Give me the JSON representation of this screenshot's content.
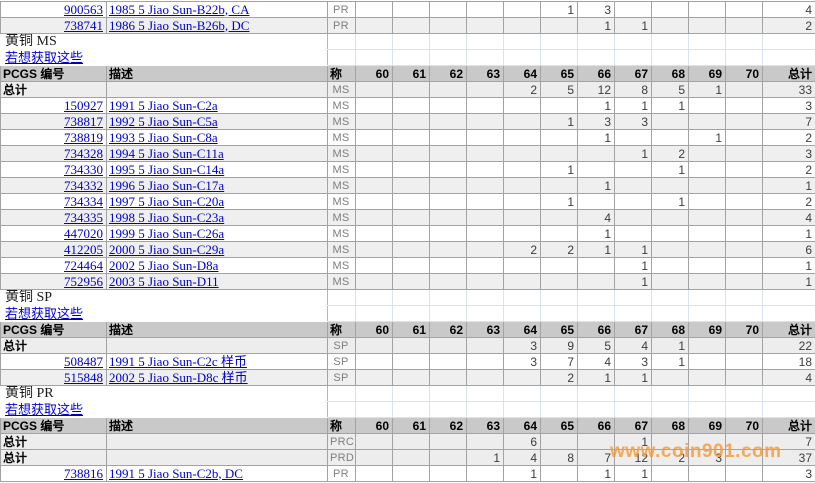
{
  "columns": {
    "pcgs_label": "PCGS 编号",
    "desc_label": "描述",
    "desig_label": "称",
    "grade_labels": [
      "60",
      "61",
      "62",
      "63",
      "64",
      "65",
      "66",
      "67",
      "68",
      "69",
      "70"
    ],
    "total_label": "总计"
  },
  "watermark": {
    "text": "www.coin901.com"
  },
  "colors": {
    "link_blue": "#0000cc",
    "header_bg": "#c9c9c9",
    "stripe_bg": "#efefef",
    "total_row_bg": "#ededed",
    "grid_gray": "#a3a3a3",
    "gap_grid_blue": "#d9e2ee",
    "watermark_orange": "#f39c3e"
  },
  "rows": [
    {
      "type": "data",
      "shade": false,
      "pcgs": "900563",
      "desc": "1985 5 Jiao Sun-B22b, CA",
      "desig": "PR",
      "grades": {
        "65": "1",
        "66": "3"
      },
      "total": "4"
    },
    {
      "type": "data",
      "shade": true,
      "pcgs": "738741",
      "desc": "1986 5 Jiao Sun-B26b, DC",
      "desig": "PR",
      "grades": {
        "66": "1",
        "67": "1"
      },
      "total": "2"
    },
    {
      "type": "section",
      "label": "黄铜  MS"
    },
    {
      "type": "link",
      "label": "若想获取这些"
    },
    {
      "type": "header"
    },
    {
      "type": "total",
      "label": "总计",
      "desig": "MS",
      "grades": {
        "64": "2",
        "65": "5",
        "66": "12",
        "67": "8",
        "68": "5",
        "69": "1"
      },
      "total": "33"
    },
    {
      "type": "data",
      "shade": false,
      "pcgs": "150927",
      "desc": "1991 5 Jiao Sun-C2a",
      "desig": "MS",
      "grades": {
        "66": "1",
        "67": "1",
        "68": "1"
      },
      "total": "3"
    },
    {
      "type": "data",
      "shade": true,
      "pcgs": "738817",
      "desc": "1992 5 Jiao Sun-C5a",
      "desig": "MS",
      "grades": {
        "65": "1",
        "66": "3",
        "67": "3"
      },
      "total": "7"
    },
    {
      "type": "data",
      "shade": false,
      "pcgs": "738819",
      "desc": "1993 5 Jiao Sun-C8a",
      "desig": "MS",
      "grades": {
        "66": "1",
        "69": "1"
      },
      "total": "2"
    },
    {
      "type": "data",
      "shade": true,
      "pcgs": "734328",
      "desc": "1994 5 Jiao Sun-C11a",
      "desig": "MS",
      "grades": {
        "67": "1",
        "68": "2"
      },
      "total": "3"
    },
    {
      "type": "data",
      "shade": false,
      "pcgs": "734330",
      "desc": "1995 5 Jiao Sun-C14a",
      "desig": "MS",
      "grades": {
        "65": "1",
        "68": "1"
      },
      "total": "2"
    },
    {
      "type": "data",
      "shade": true,
      "pcgs": "734332",
      "desc": "1996 5 Jiao Sun-C17a",
      "desig": "MS",
      "grades": {
        "66": "1"
      },
      "total": "1"
    },
    {
      "type": "data",
      "shade": false,
      "pcgs": "734334",
      "desc": "1997 5 Jiao Sun-C20a",
      "desig": "MS",
      "grades": {
        "65": "1",
        "68": "1"
      },
      "total": "2"
    },
    {
      "type": "data",
      "shade": true,
      "pcgs": "734335",
      "desc": "1998 5 Jiao Sun-C23a",
      "desig": "MS",
      "grades": {
        "66": "4"
      },
      "total": "4"
    },
    {
      "type": "data",
      "shade": false,
      "pcgs": "447020",
      "desc": "1999 5 Jiao Sun-C26a",
      "desig": "MS",
      "grades": {
        "66": "1"
      },
      "total": "1"
    },
    {
      "type": "data",
      "shade": true,
      "pcgs": "412205",
      "desc": "2000 5 Jiao Sun-C29a",
      "desig": "MS",
      "grades": {
        "64": "2",
        "65": "2",
        "66": "1",
        "67": "1"
      },
      "total": "6"
    },
    {
      "type": "data",
      "shade": false,
      "pcgs": "724464",
      "desc": "2002 5 Jiao Sun-D8a",
      "desig": "MS",
      "grades": {
        "67": "1"
      },
      "total": "1"
    },
    {
      "type": "data",
      "shade": true,
      "pcgs": "752956",
      "desc": "2003 5 Jiao Sun-D11",
      "desig": "MS",
      "grades": {
        "67": "1"
      },
      "total": "1"
    },
    {
      "type": "section",
      "label": "黄铜  SP"
    },
    {
      "type": "link",
      "label": "若想获取这些"
    },
    {
      "type": "header"
    },
    {
      "type": "total",
      "label": "总计",
      "desig": "SP",
      "grades": {
        "64": "3",
        "65": "9",
        "66": "5",
        "67": "4",
        "68": "1"
      },
      "total": "22"
    },
    {
      "type": "data",
      "shade": false,
      "pcgs": "508487",
      "desc": "1991 5 Jiao Sun-C2c 样币",
      "desig": "SP",
      "grades": {
        "64": "3",
        "65": "7",
        "66": "4",
        "67": "3",
        "68": "1"
      },
      "total": "18"
    },
    {
      "type": "data",
      "shade": true,
      "pcgs": "515848",
      "desc": "2002 5 Jiao Sun-D8c 样币",
      "desig": "SP",
      "grades": {
        "65": "2",
        "66": "1",
        "67": "1"
      },
      "total": "4"
    },
    {
      "type": "section",
      "label": "黄铜  PR"
    },
    {
      "type": "link",
      "label": "若想获取这些"
    },
    {
      "type": "header"
    },
    {
      "type": "total",
      "label": "总计",
      "desig": "PRC",
      "grades": {
        "64": "6",
        "67": "1"
      },
      "total": "7"
    },
    {
      "type": "total",
      "label": "总计",
      "desig": "PRD",
      "grades": {
        "63": "1",
        "64": "4",
        "65": "8",
        "66": "7",
        "67": "12",
        "68": "2",
        "69": "3"
      },
      "total": "37"
    },
    {
      "type": "data",
      "shade": false,
      "pcgs": "738816",
      "desc": "1991 5 Jiao Sun-C2b, DC",
      "desig": "PR",
      "grades": {
        "64": "1",
        "66": "1",
        "67": "1"
      },
      "total": "3"
    }
  ]
}
